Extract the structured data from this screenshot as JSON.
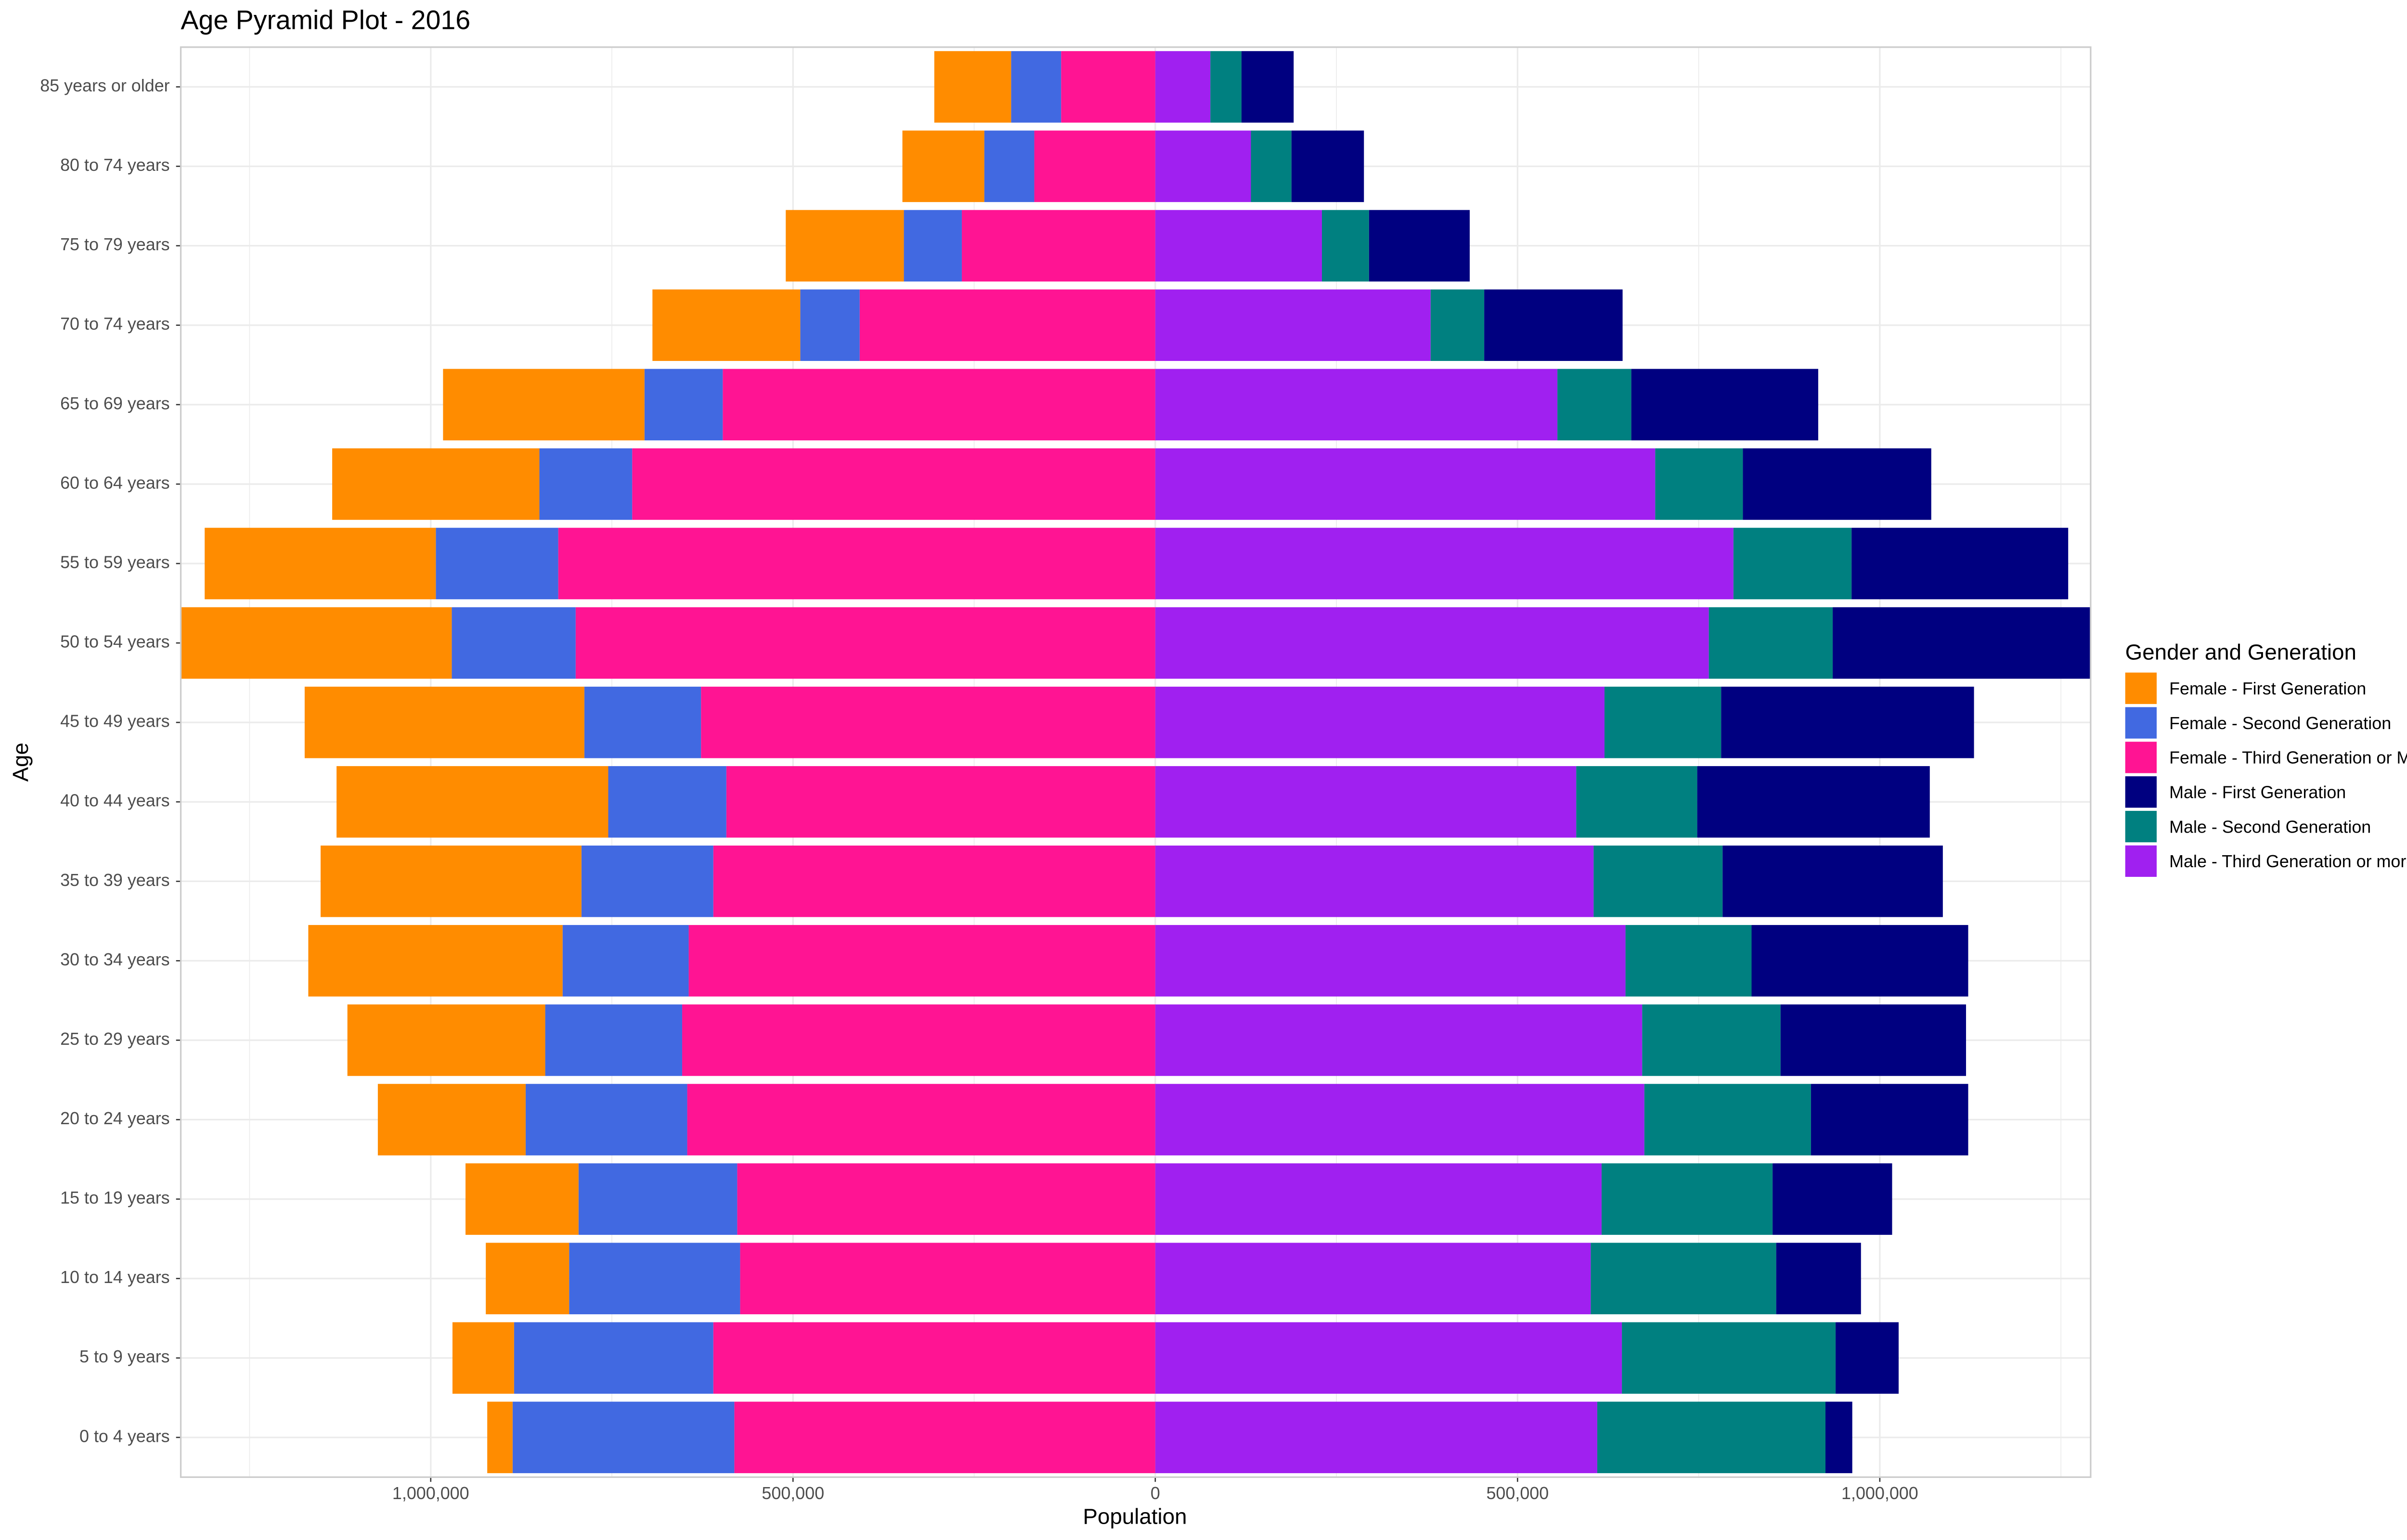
{
  "chart_data": {
    "type": "stacked-barh",
    "title": "Age Pyramid Plot - 2016",
    "xlabel": "Population",
    "ylabel": "Age",
    "legend_title": "Gender and Generation",
    "legend": "right",
    "grid": true,
    "categories": [
      "0 to 4 years",
      "5 to 9 years",
      "10 to 14 years",
      "15 to 19 years",
      "20 to 24 years",
      "25 to 29 years",
      "30 to 34 years",
      "35 to 39 years",
      "40 to 44 years",
      "45 to 49 years",
      "50 to 54 years",
      "55 to 59 years",
      "60 to 64 years",
      "65 to 69 years",
      "70 to 74 years",
      "75 to 79 years",
      "80 to 74 years",
      "85 years or older"
    ],
    "series": [
      {
        "name": "Female - First Generation",
        "color": "#ff8c00",
        "values": [
          -35000,
          -85000,
          -115000,
          -156000,
          -204000,
          -273000,
          -351000,
          -360000,
          -375000,
          -386000,
          -373000,
          -319000,
          -286000,
          -278000,
          -204000,
          -163000,
          -113000,
          -106000
        ]
      },
      {
        "name": "Female - Second Generation",
        "color": "#4169e1",
        "values": [
          -306000,
          -275000,
          -236000,
          -219000,
          -223000,
          -189000,
          -174000,
          -182000,
          -163000,
          -161000,
          -171000,
          -169000,
          -128000,
          -108000,
          -82000,
          -80000,
          -69000,
          -69000
        ]
      },
      {
        "name": "Female - Third Generation or More",
        "color": "#ff1493",
        "values": [
          -581000,
          -610000,
          -573000,
          -577000,
          -646000,
          -653000,
          -644000,
          -610000,
          -592000,
          -627000,
          -800000,
          -824000,
          -722000,
          -597000,
          -408000,
          -267000,
          -167000,
          -130000
        ]
      },
      {
        "name": "Male - First Generation",
        "color": "#000080",
        "values": [
          37000,
          87000,
          117000,
          165000,
          217000,
          256000,
          299000,
          304000,
          321000,
          349000,
          356000,
          299000,
          260000,
          258000,
          191000,
          139000,
          100000,
          72000
        ]
      },
      {
        "name": "Male - Second Generation",
        "color": "#008080",
        "values": [
          315000,
          295000,
          256000,
          236000,
          230000,
          191000,
          174000,
          178000,
          167000,
          161000,
          171000,
          163000,
          121000,
          102000,
          74000,
          65000,
          56000,
          43000
        ]
      },
      {
        "name": "Male - Third Generation or more",
        "color": "#a020f0",
        "values": [
          610000,
          644000,
          601000,
          616000,
          675000,
          672000,
          649000,
          605000,
          581000,
          620000,
          764000,
          798000,
          690000,
          555000,
          380000,
          230000,
          132000,
          76000
        ]
      }
    ],
    "xlim": [
      -1345000,
      1291000
    ],
    "xticks": [
      {
        "value": -1000000,
        "label": "1,000,000"
      },
      {
        "value": -500000,
        "label": "500,000"
      },
      0,
      {
        "value": 500000,
        "label": "500,000"
      },
      {
        "value": 1000000,
        "label": "1,000,000"
      }
    ],
    "x_minor_ticks": [
      -1250000,
      -750000,
      -250000,
      250000,
      750000,
      1250000
    ]
  }
}
